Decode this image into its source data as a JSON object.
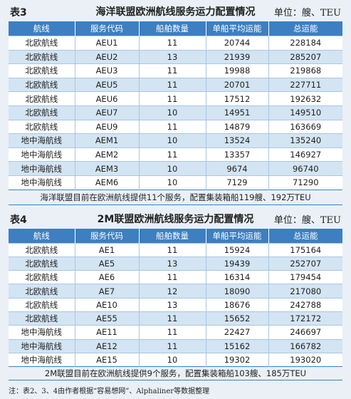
{
  "tables": [
    {
      "label": "表3",
      "title": "海洋联盟欧洲航线服务运力配置情况",
      "unit": "单位：艘、TEU",
      "header": [
        "航线",
        "服务代码",
        "船舶数量",
        "单船平均运能",
        "总运能"
      ],
      "rows": [
        [
          "北欧航线",
          "AEU1",
          11,
          20744,
          228184
        ],
        [
          "北欧航线",
          "AEU2",
          13,
          21939,
          285207
        ],
        [
          "北欧航线",
          "AEU3",
          11,
          19988,
          219868
        ],
        [
          "北欧航线",
          "AEU5",
          11,
          20701,
          227711
        ],
        [
          "北欧航线",
          "AEU6",
          11,
          17512,
          192632
        ],
        [
          "北欧航线",
          "AEU7",
          10,
          14951,
          149510
        ],
        [
          "北欧航线",
          "AEU9",
          11,
          14879,
          163669
        ],
        [
          "地中海航线",
          "AEM1",
          10,
          13524,
          135240
        ],
        [
          "地中海航线",
          "AEM2",
          11,
          13357,
          146927
        ],
        [
          "地中海航线",
          "AEM3",
          10,
          9674,
          96740
        ],
        [
          "地中海航线",
          "AEM6",
          10,
          7129,
          71290
        ]
      ],
      "footer": "海洋联盟目前在欧洲航线提供11个服务，配置集装箱船119艘、192万TEU"
    },
    {
      "label": "表4",
      "title": "2M联盟欧洲航线服务运力配置情况",
      "unit": "单位：艘、TEU",
      "header": [
        "航线",
        "服务代码",
        "船舶数量",
        "单船平均运能",
        "总运能"
      ],
      "rows": [
        [
          "北欧航线",
          "AE1",
          11,
          15924,
          175164
        ],
        [
          "北欧航线",
          "AE5",
          13,
          19439,
          252707
        ],
        [
          "北欧航线",
          "AE6",
          11,
          16314,
          179454
        ],
        [
          "北欧航线",
          "AE7",
          12,
          18090,
          217080
        ],
        [
          "北欧航线",
          "AE10",
          13,
          18676,
          242788
        ],
        [
          "北欧航线",
          "AE55",
          11,
          15652,
          172172
        ],
        [
          "地中海航线",
          "AE11",
          11,
          22427,
          246697
        ],
        [
          "地中海航线",
          "AE12",
          11,
          15162,
          166782
        ],
        [
          "地中海航线",
          "AE15",
          10,
          19302,
          193020
        ]
      ],
      "footer": "2M联盟目前在欧洲航线提供9个服务，配置集装箱船103艘、185万TEU"
    }
  ],
  "source_note": "注：表2、3、4由作者根据“容易想网”、Alphaliner等数据整理"
}
